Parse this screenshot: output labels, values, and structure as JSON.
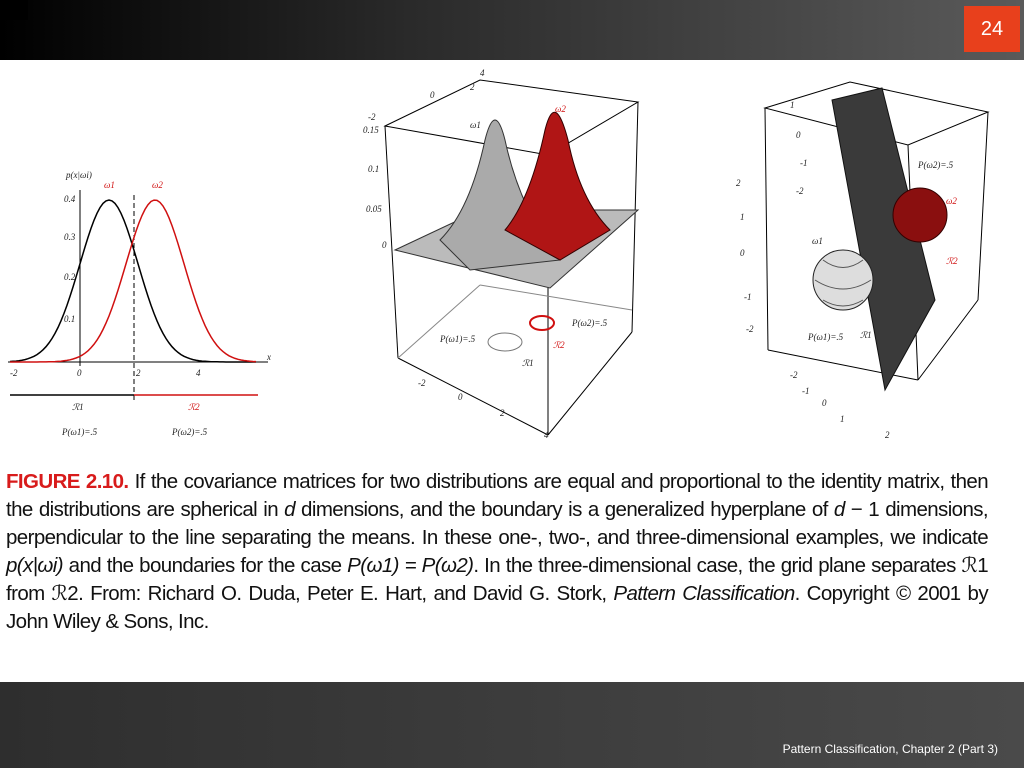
{
  "header": {
    "slide_number": "24"
  },
  "figure": {
    "left_labels": [
      "p(x|ωi)",
      "ω1",
      "ω2",
      "0.4",
      "0.3",
      "0.2",
      "0.1",
      "-2",
      "0",
      "2",
      "4",
      "x",
      "ℛ1",
      "ℛ2",
      "P(ω1)=.5",
      "P(ω2)=.5"
    ],
    "middle_labels": [
      "0.15",
      "0.1",
      "0.05",
      "0",
      "ω1",
      "ω2",
      "P(ω1)=.5",
      "P(ω2)=.5",
      "ℛ1",
      "ℛ2",
      "-2",
      "0",
      "2",
      "4",
      "-2",
      "0",
      "2",
      "4"
    ],
    "right_labels": [
      "P(ω2)=.5",
      "ω2",
      "ℛ2",
      "ω1",
      "P(ω1)=.5",
      "ℛ1",
      "1",
      "0",
      "-1",
      "-2",
      "2",
      "1",
      "0",
      "-1",
      "-2",
      "-2",
      "-1",
      "0",
      "1",
      "2"
    ]
  },
  "caption": {
    "label": "FIGURE 2.10.",
    "runs": [
      " If the covariance matrices for two distributions are equal and proportional to the identity matrix, then the distributions are spherical in ",
      "d",
      " dimensions, and the boundary is a generalized hyperplane of ",
      "d",
      " − 1 dimensions, perpendicular to the line separating the means. In these one-, two-, and three-dimensional examples, we indicate ",
      "p(x|ωi)",
      " and the boundaries for the case ",
      "P(ω1) = P(ω2)",
      ". In the three-dimensional case, the grid plane separates ",
      "ℛ1",
      " from ",
      "ℛ2",
      ". From: Richard O. Duda, Peter E. Hart, and David G. Stork, ",
      "Pattern Classification",
      ". Copyright © 2001 by John Wiley & Sons, Inc."
    ]
  },
  "footer": {
    "text": "Pattern Classification, Chapter 2 (Part 3)"
  }
}
